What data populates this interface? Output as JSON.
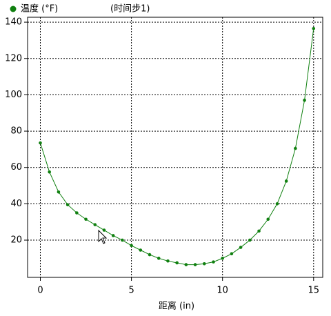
{
  "chart_data": {
    "type": "line",
    "series": [
      {
        "name": "温度 (°F)",
        "color": "#108010",
        "values": [
          73.5,
          57.5,
          46.5,
          39.5,
          35,
          31.5,
          28.5,
          25.5,
          22.5,
          20,
          17,
          14.5,
          12,
          10,
          8.5,
          7.5,
          6.5,
          6.5,
          7,
          8,
          10,
          12.5,
          16,
          20,
          25,
          31.5,
          40,
          52.5,
          70.5,
          97,
          136.5
        ]
      }
    ],
    "subtitle": "(时间步1)",
    "x": [
      0,
      0.5,
      1,
      1.5,
      2,
      2.5,
      3,
      3.5,
      4,
      4.5,
      5,
      5.5,
      6,
      6.5,
      7,
      7.5,
      8,
      8.5,
      9,
      9.5,
      10,
      10.5,
      11,
      11.5,
      12,
      12.5,
      13,
      13.5,
      14,
      14.5,
      15
    ],
    "x_label": "距离 (in)",
    "xlim": [
      -0.7,
      15.5
    ],
    "xticks": [
      0,
      5,
      10,
      15
    ],
    "ylim": [
      -0.5,
      142.7
    ],
    "yticks": [
      20,
      40,
      60,
      80,
      100,
      120,
      140
    ],
    "grid": true
  }
}
